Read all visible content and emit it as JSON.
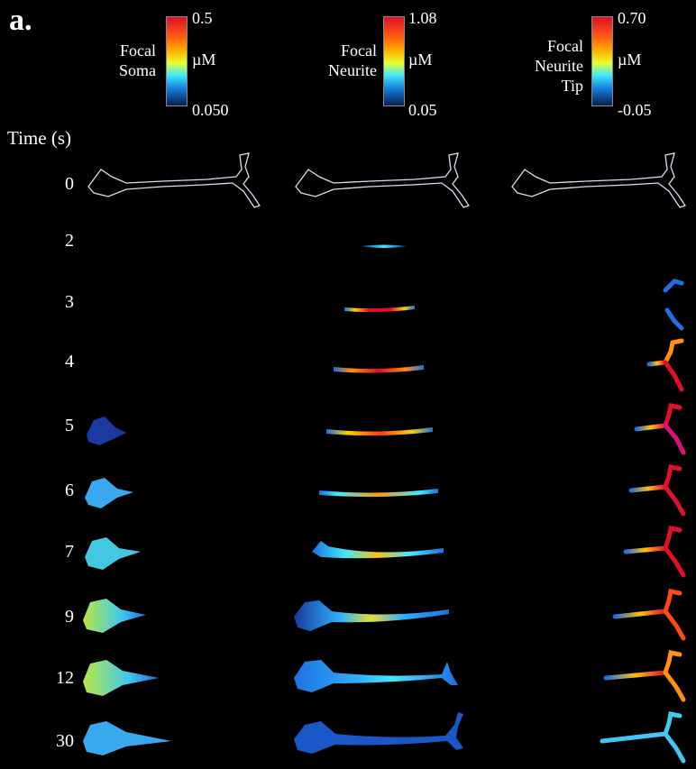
{
  "panel_letter": "a.",
  "time_header": "Time (s)",
  "colorbars": [
    {
      "label_lines": [
        "Focal",
        "Soma"
      ],
      "max": "0.5",
      "min": "0.050",
      "unit": "µM"
    },
    {
      "label_lines": [
        "Focal",
        "Neurite"
      ],
      "max": "1.08",
      "min": "0.05",
      "unit": "µM"
    },
    {
      "label_lines": [
        "Focal",
        "Neurite",
        "Tip"
      ],
      "max": "0.70",
      "min": "-0.05",
      "unit": "µM"
    }
  ],
  "time_points": [
    "0",
    "2",
    "3",
    "4",
    "5",
    "6",
    "7",
    "9",
    "12",
    "30"
  ],
  "colors": {
    "background": "#000000",
    "high": "#e0102a",
    "mid": "#e8ff30",
    "low": "#08204a"
  }
}
